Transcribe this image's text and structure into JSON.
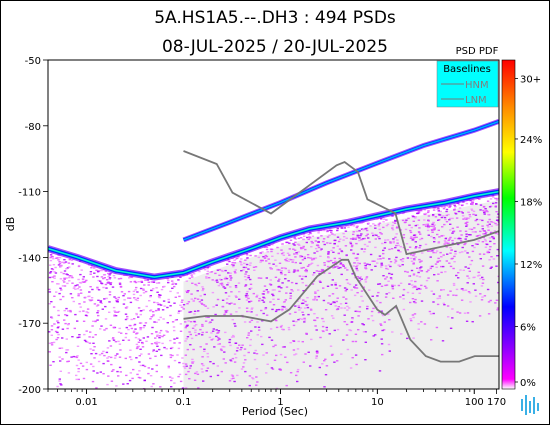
{
  "chart_data": {
    "type": "heatmap",
    "title": "5A.HS1A5.--.DH3 : 494 PSDs",
    "subtitle": "08-JUL-2025 / 20-JUL-2025",
    "xlabel": "Period (Sec)",
    "ylabel": "dB",
    "x_scale": "log",
    "xlim": [
      0.004,
      180
    ],
    "ylim": [
      -200,
      -50
    ],
    "x_ticks": [
      {
        "value": 0.01,
        "label": "0.01"
      },
      {
        "value": 0.1,
        "label": "0.1"
      },
      {
        "value": 1,
        "label": "1"
      },
      {
        "value": 10,
        "label": "10"
      },
      {
        "value": 100,
        "label": "100"
      },
      {
        "value": 170,
        "label": "170"
      }
    ],
    "y_ticks": [
      {
        "value": -50,
        "label": "-50"
      },
      {
        "value": -80,
        "label": "-80"
      },
      {
        "value": -110,
        "label": "-110"
      },
      {
        "value": -140,
        "label": "-140"
      },
      {
        "value": -170,
        "label": "-170"
      },
      {
        "value": -200,
        "label": "-200"
      }
    ],
    "colorbar": {
      "title": "PSD PDF",
      "min": 0,
      "max": 30,
      "unit": "%",
      "tick_labels": [
        "0%",
        "6%",
        "12%",
        "18%",
        "24%",
        "30+"
      ],
      "colors": [
        "#ffffff",
        "#ff00ff",
        "#8800ff",
        "#0000ff",
        "#00ffff",
        "#00ff00",
        "#ffff00",
        "#ff8800",
        "#ff0000"
      ]
    },
    "legend": {
      "title": "Baselines",
      "placement": "top-right",
      "background": "#00ffff",
      "entries": [
        "HNM",
        "LNM"
      ]
    },
    "baselines": [
      {
        "name": "HNM",
        "color": "#777777",
        "x": [
          0.1,
          0.22,
          0.32,
          0.8,
          3.8,
          4.6,
          6.3,
          7.9,
          15.4,
          20,
          100,
          180
        ],
        "y": [
          -91.5,
          -97.4,
          -110.5,
          -120,
          -98,
          -96.5,
          -101,
          -113.5,
          -120,
          -138.5,
          -132,
          -128
        ]
      },
      {
        "name": "LNM",
        "color": "#777777",
        "x": [
          0.1,
          0.17,
          0.4,
          0.8,
          1.24,
          2.4,
          4.3,
          5,
          6,
          10,
          12,
          15.6,
          21.9,
          31.6,
          45,
          70,
          101,
          154,
          180
        ],
        "y": [
          -168,
          -166.7,
          -166.7,
          -169.2,
          -163.7,
          -148.6,
          -141.1,
          -141.1,
          -149,
          -163.8,
          -166.2,
          -162.1,
          -177.5,
          -185,
          -187.5,
          -187.5,
          -185,
          -185,
          -185
        ]
      }
    ],
    "modes": [
      {
        "name": "low_noise_mode",
        "x": [
          0.004,
          0.008,
          0.02,
          0.05,
          0.1,
          0.2,
          0.5,
          1,
          2,
          5,
          10,
          20,
          50,
          100,
          180
        ],
        "y": [
          -136,
          -140,
          -146,
          -149,
          -147,
          -142,
          -136,
          -131,
          -127,
          -124,
          -121,
          -118,
          -115,
          -112,
          -110
        ]
      },
      {
        "name": "upper_band",
        "x": [
          0.1,
          0.3,
          1,
          3,
          10,
          30,
          100,
          180
        ],
        "y": [
          -132,
          -124,
          -115,
          -106,
          -97,
          -89,
          -82,
          -78
        ]
      }
    ],
    "nodata_region": {
      "x_start": 0.1,
      "color": "#eeeeee"
    }
  }
}
